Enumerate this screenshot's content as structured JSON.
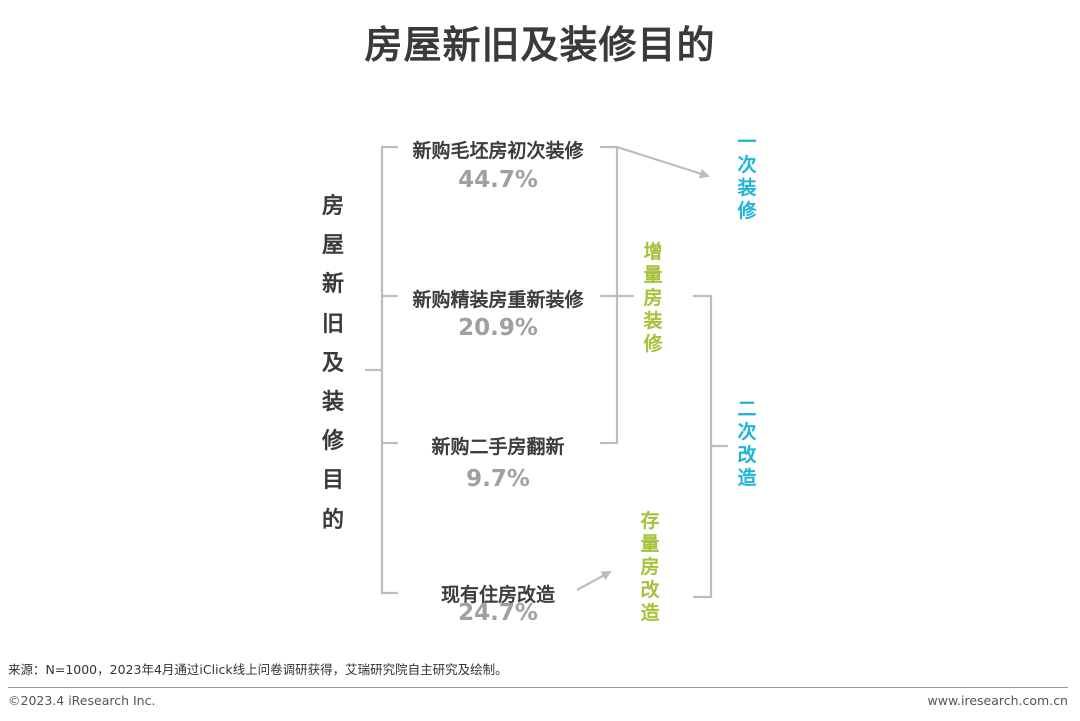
{
  "title": "房屋新旧及装修目的",
  "root_label": [
    "房",
    "屋",
    "新",
    "旧",
    "及",
    "装",
    "修",
    "目",
    "的"
  ],
  "items": [
    {
      "label": "新购毛坯房初次装修",
      "percent": "44.7%"
    },
    {
      "label": "新购精装房重新装修",
      "percent": "20.9%"
    },
    {
      "label": "新购二手房翻新",
      "percent": "9.7%"
    },
    {
      "label": "现有住房改造",
      "percent": "24.7%"
    }
  ],
  "groups": {
    "incremental": [
      "增",
      "量",
      "房",
      "装",
      "修"
    ],
    "stock": [
      "存",
      "量",
      "房",
      "改",
      "造"
    ],
    "first_decoration": [
      "一",
      "次",
      "装",
      "修"
    ],
    "second_renovation": [
      "二",
      "次",
      "改",
      "造"
    ]
  },
  "colors": {
    "title": "#3a3a3a",
    "percent": "#a0a0a0",
    "green": "#a5c23a",
    "blue": "#1fb5d9",
    "lines": "#bdbdbd"
  },
  "footer": {
    "source": "来源：N=1000，2023年4月通过iClick线上问卷调研获得，艾瑞研究院自主研究及绘制。",
    "copyright": "©2023.4 iResearch Inc.",
    "website": "www.iresearch.com.cn"
  }
}
